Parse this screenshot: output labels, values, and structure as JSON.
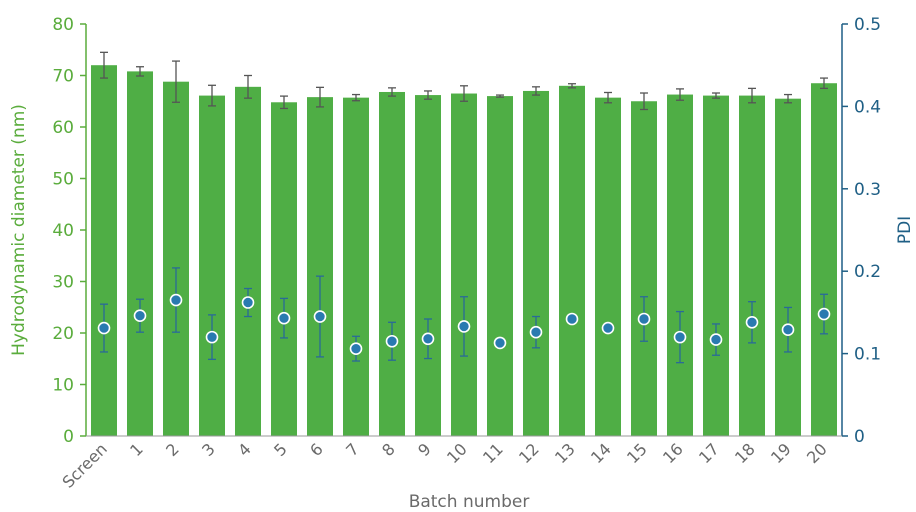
{
  "chart_data": {
    "type": "bar",
    "xlabel": "Batch number",
    "ylabel_left": "Hydrodynamic diameter (nm)",
    "ylabel_right": "PDI",
    "ylim_left": [
      0,
      80
    ],
    "ylim_right": [
      0,
      0.5
    ],
    "yticks_left": [
      "0",
      "10",
      "20",
      "30",
      "40",
      "50",
      "60",
      "70",
      "80"
    ],
    "yticks_right": [
      "0",
      "0.1",
      "0.2",
      "0.3",
      "0.4",
      "0.5"
    ],
    "grid": false,
    "categories": [
      "Screen",
      "1",
      "2",
      "3",
      "4",
      "5",
      "6",
      "7",
      "8",
      "9",
      "10",
      "11",
      "12",
      "13",
      "14",
      "15",
      "16",
      "17",
      "18",
      "19",
      "20"
    ],
    "series": [
      {
        "axis": "left",
        "kind": "bar",
        "values": [
          72.0,
          70.8,
          68.8,
          66.1,
          67.8,
          64.8,
          65.8,
          65.7,
          66.8,
          66.2,
          66.5,
          66.0,
          67.0,
          68.0,
          65.7,
          65.0,
          66.3,
          66.1,
          66.1,
          65.5,
          68.5
        ],
        "error": [
          2.5,
          0.9,
          4.0,
          2.0,
          2.2,
          1.2,
          1.9,
          0.6,
          0.8,
          0.8,
          1.5,
          0.2,
          0.8,
          0.4,
          1.0,
          1.6,
          1.1,
          0.5,
          1.4,
          0.8,
          1.0
        ]
      },
      {
        "axis": "right",
        "kind": "point",
        "values": [
          0.131,
          0.146,
          0.165,
          0.12,
          0.162,
          0.143,
          0.145,
          0.106,
          0.115,
          0.118,
          0.133,
          0.113,
          0.126,
          0.142,
          0.131,
          0.142,
          0.12,
          0.117,
          0.138,
          0.129,
          0.148
        ],
        "error": [
          0.029,
          0.02,
          0.039,
          0.027,
          0.017,
          0.024,
          0.049,
          0.015,
          0.023,
          0.024,
          0.036,
          0.0,
          0.019,
          0.0,
          0.0,
          0.027,
          0.031,
          0.019,
          0.025,
          0.027,
          0.024
        ]
      }
    ],
    "colors": {
      "bar": "#4fae45",
      "bar_error": "#555555",
      "point_fill": "#2a7ab0",
      "point_stroke": "#ffffff",
      "point_error": "#2a6a98",
      "left_axis": "#5aac3c",
      "right_axis": "#1f5f85",
      "x_labels": "#6a6a6a"
    }
  }
}
